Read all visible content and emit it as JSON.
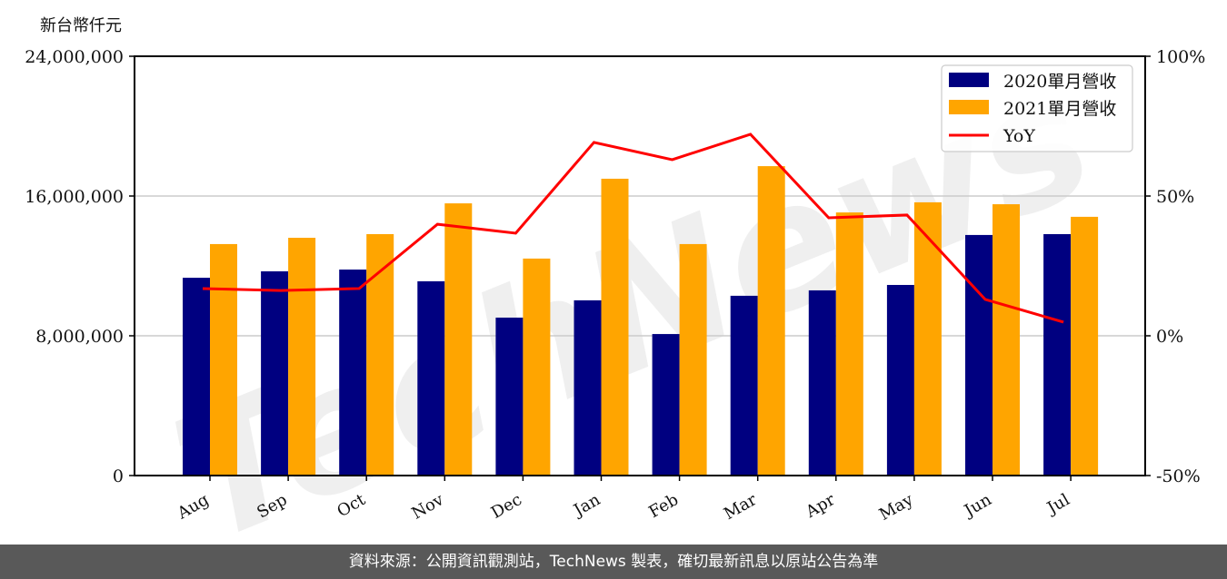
{
  "chart_data": {
    "type": "bar",
    "title": "",
    "ylabel": "新台幣仟元",
    "xlabel": "",
    "categories": [
      "Aug",
      "Sep",
      "Oct",
      "Nov",
      "Dec",
      "Jan",
      "Feb",
      "Mar",
      "Apr",
      "May",
      "Jun",
      "Jul"
    ],
    "series": [
      {
        "name": "2020單月營收",
        "type": "bar",
        "color": "#000080",
        "values": [
          11320000,
          11690000,
          11790000,
          11120000,
          9040000,
          10030000,
          8100000,
          10290000,
          10600000,
          10910000,
          13770000,
          13820000
        ]
      },
      {
        "name": "2021單月營收",
        "type": "bar",
        "color": "#FFA500",
        "values": [
          13250000,
          13610000,
          13820000,
          15580000,
          12420000,
          16990000,
          13250000,
          17710000,
          15060000,
          15640000,
          15530000,
          14810000
        ]
      },
      {
        "name": "YoY",
        "type": "line",
        "axis": "right",
        "color": "#FF0000",
        "values": [
          16.9,
          16.2,
          16.9,
          39.9,
          36.7,
          69.2,
          63.0,
          72.1,
          42.2,
          43.2,
          13.0,
          4.9
        ]
      }
    ],
    "ylim": [
      0,
      24000000
    ],
    "yticks": [
      "0",
      "8,000,000",
      "16,000,000",
      "24,000,000"
    ],
    "y2lim": [
      -50,
      100
    ],
    "y2ticks": [
      "-50%",
      "0%",
      "50%",
      "100%"
    ],
    "grid": true,
    "legend_position": "upper right"
  },
  "unit_label": "新台幣仟元",
  "legend": {
    "items": [
      "2020單月營收",
      "2021單月營收",
      "YoY"
    ]
  },
  "footer": {
    "text": "資料來源：公開資訊觀測站，TechNews 製表，確切最新訊息以原站公告為準"
  },
  "watermark": "TechNews"
}
